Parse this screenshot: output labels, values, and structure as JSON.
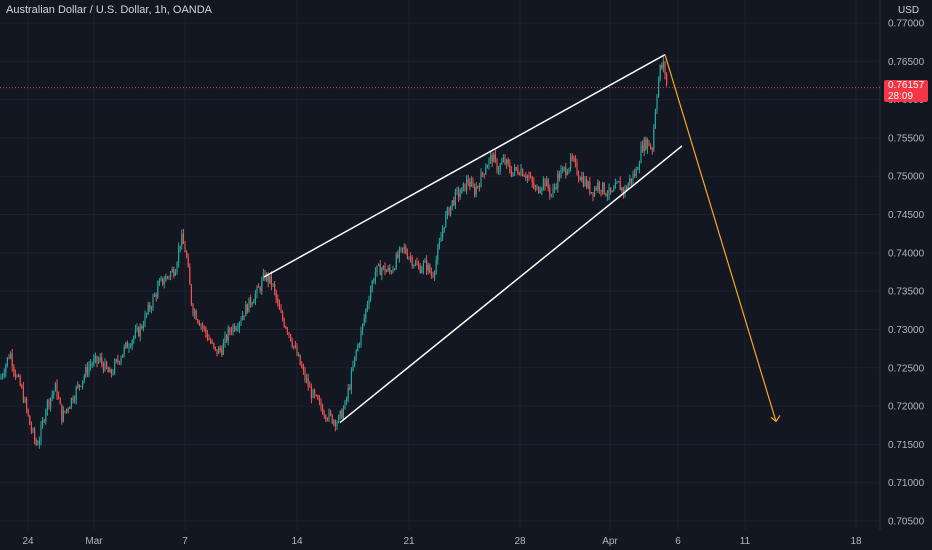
{
  "header": {
    "title": "Australian Dollar / U.S. Dollar, 1h, OANDA"
  },
  "axis": {
    "currency": "USD"
  },
  "price_tag": {
    "price": "0.76157",
    "countdown": "28:09"
  },
  "colors": {
    "background": "#131722",
    "up": "#26a69a",
    "down": "#ef5350",
    "trend": "#ffffff",
    "projection": "#f5a623",
    "axis_text": "#b2b5be"
  },
  "chart_data": {
    "type": "candlestick",
    "title": "Australian Dollar / U.S. Dollar, 1h, OANDA",
    "ylabel": "USD",
    "ylim": [
      0.705,
      0.77
    ],
    "y_ticks": [
      "0.77000",
      "0.76500",
      "0.76000",
      "0.75500",
      "0.75000",
      "0.74500",
      "0.74000",
      "0.73500",
      "0.73000",
      "0.72500",
      "0.72000",
      "0.71500",
      "0.71000",
      "0.70500"
    ],
    "x_ticks": [
      "24",
      "Mar",
      "7",
      "14",
      "21",
      "28",
      "Apr",
      "6",
      "11",
      "18"
    ],
    "last_price": 0.76157,
    "price_path": [
      [
        0,
        0.7235
      ],
      [
        10,
        0.727
      ],
      [
        16,
        0.724
      ],
      [
        22,
        0.722
      ],
      [
        30,
        0.7175
      ],
      [
        36,
        0.715
      ],
      [
        40,
        0.716
      ],
      [
        46,
        0.72
      ],
      [
        56,
        0.7225
      ],
      [
        62,
        0.7185
      ],
      [
        70,
        0.7205
      ],
      [
        80,
        0.723
      ],
      [
        90,
        0.7255
      ],
      [
        100,
        0.726
      ],
      [
        110,
        0.724
      ],
      [
        120,
        0.7265
      ],
      [
        130,
        0.7285
      ],
      [
        140,
        0.73
      ],
      [
        150,
        0.733
      ],
      [
        160,
        0.736
      ],
      [
        168,
        0.737
      ],
      [
        175,
        0.738
      ],
      [
        181,
        0.742
      ],
      [
        186,
        0.74
      ],
      [
        192,
        0.733
      ],
      [
        200,
        0.731
      ],
      [
        208,
        0.729
      ],
      [
        215,
        0.727
      ],
      [
        222,
        0.7275
      ],
      [
        230,
        0.73
      ],
      [
        238,
        0.731
      ],
      [
        245,
        0.7325
      ],
      [
        252,
        0.734
      ],
      [
        258,
        0.735
      ],
      [
        265,
        0.737
      ],
      [
        272,
        0.736
      ],
      [
        280,
        0.732
      ],
      [
        288,
        0.73
      ],
      [
        296,
        0.727
      ],
      [
        304,
        0.724
      ],
      [
        312,
        0.7215
      ],
      [
        320,
        0.72
      ],
      [
        330,
        0.7185
      ],
      [
        338,
        0.718
      ],
      [
        345,
        0.72
      ],
      [
        350,
        0.723
      ],
      [
        356,
        0.727
      ],
      [
        362,
        0.73
      ],
      [
        368,
        0.734
      ],
      [
        375,
        0.7375
      ],
      [
        382,
        0.738
      ],
      [
        390,
        0.7375
      ],
      [
        398,
        0.7395
      ],
      [
        404,
        0.7405
      ],
      [
        410,
        0.7395
      ],
      [
        418,
        0.738
      ],
      [
        426,
        0.7385
      ],
      [
        432,
        0.737
      ],
      [
        438,
        0.74
      ],
      [
        444,
        0.744
      ],
      [
        450,
        0.746
      ],
      [
        456,
        0.7475
      ],
      [
        462,
        0.748
      ],
      [
        468,
        0.7495
      ],
      [
        474,
        0.748
      ],
      [
        480,
        0.7495
      ],
      [
        486,
        0.7515
      ],
      [
        492,
        0.7525
      ],
      [
        498,
        0.751
      ],
      [
        504,
        0.752
      ],
      [
        512,
        0.7505
      ],
      [
        520,
        0.751
      ],
      [
        528,
        0.75
      ],
      [
        536,
        0.748
      ],
      [
        544,
        0.7495
      ],
      [
        552,
        0.7475
      ],
      [
        558,
        0.75
      ],
      [
        566,
        0.751
      ],
      [
        572,
        0.752
      ],
      [
        578,
        0.7505
      ],
      [
        586,
        0.749
      ],
      [
        592,
        0.748
      ],
      [
        598,
        0.749
      ],
      [
        606,
        0.748
      ],
      [
        612,
        0.7475
      ],
      [
        618,
        0.749
      ],
      [
        624,
        0.748
      ],
      [
        630,
        0.7495
      ],
      [
        636,
        0.7505
      ],
      [
        642,
        0.754
      ],
      [
        648,
        0.7545
      ],
      [
        652,
        0.7535
      ],
      [
        656,
        0.76
      ],
      [
        660,
        0.764
      ],
      [
        664,
        0.7645
      ],
      [
        667,
        0.7616
      ]
    ],
    "lines": {
      "upper": [
        [
          264,
          0.73685
        ],
        [
          665,
          0.76587
        ]
      ],
      "lower": [
        [
          340,
          0.71785
        ],
        [
          682,
          0.75395
        ]
      ],
      "projection": [
        [
          665,
          0.76587
        ],
        [
          776,
          0.718
        ]
      ]
    }
  }
}
